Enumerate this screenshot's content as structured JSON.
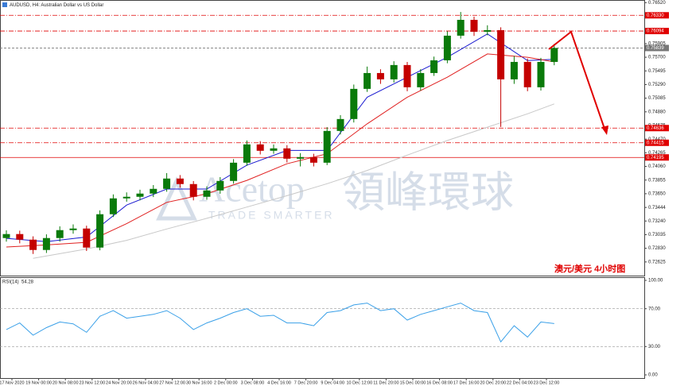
{
  "chart_data": [
    {
      "type": "candlestick",
      "title": "AUDUSD, H4: Australian Dollar vs US Dollar",
      "annotation": "澳元/美元   4小时图",
      "up_color": "#0a7a0a",
      "down_color": "#c40000",
      "categories": [
        "17 Nov 2020",
        null,
        "19 Nov 00:00",
        null,
        "20 Nov 08:00",
        null,
        "23 Nov 12:00",
        null,
        "24 Nov 20:00",
        null,
        "26 Nov 04:00",
        null,
        "27 Nov 12:00",
        null,
        "30 Nov 16:00",
        null,
        "2 Dec 00:00",
        null,
        "3 Dec 08:00",
        null,
        "4 Dec 16:00",
        null,
        "7 Dec 20:00",
        null,
        "9 Dec 04:00",
        null,
        "10 Dec 12:00",
        null,
        "11 Dec 20:00",
        null,
        "15 Dec 00:00",
        null,
        "16 Dec 08:00",
        null,
        "17 Dec 16:00",
        null,
        "20 Dec 20:00",
        null,
        "22 Dec 04:00",
        null,
        "23 Dec 12:00",
        null
      ],
      "candles": [
        [
          0.72984,
          0.731,
          0.7293,
          0.73044
        ],
        [
          0.73044,
          0.73095,
          0.72905,
          0.7296
        ],
        [
          0.7296,
          0.7301,
          0.72745,
          0.72805
        ],
        [
          0.72805,
          0.7304,
          0.7276,
          0.72984
        ],
        [
          0.72984,
          0.7316,
          0.7293,
          0.73103
        ],
        [
          0.73103,
          0.7319,
          0.7305,
          0.73127
        ],
        [
          0.73127,
          0.7317,
          0.7279,
          0.72841
        ],
        [
          0.72841,
          0.734,
          0.728,
          0.73342
        ],
        [
          0.73342,
          0.7364,
          0.733,
          0.7358
        ],
        [
          0.7358,
          0.7367,
          0.7353,
          0.73604
        ],
        [
          0.73604,
          0.7371,
          0.7355,
          0.73652
        ],
        [
          0.73652,
          0.7378,
          0.736,
          0.73723
        ],
        [
          0.73723,
          0.7396,
          0.7368,
          0.73878
        ],
        [
          0.73878,
          0.7393,
          0.7374,
          0.73795
        ],
        [
          0.73795,
          0.7384,
          0.7355,
          0.73604
        ],
        [
          0.73604,
          0.7376,
          0.7356,
          0.73699
        ],
        [
          0.73699,
          0.739,
          0.7365,
          0.73842
        ],
        [
          0.73842,
          0.7417,
          0.738,
          0.74116
        ],
        [
          0.74116,
          0.7445,
          0.7407,
          0.74391
        ],
        [
          0.74391,
          0.7444,
          0.7424,
          0.74295
        ],
        [
          0.74295,
          0.7439,
          0.7425,
          0.74331
        ],
        [
          0.74331,
          0.7438,
          0.7412,
          0.74176
        ],
        [
          0.74176,
          0.7426,
          0.7406,
          0.742
        ],
        [
          0.742,
          0.7425,
          0.7406,
          0.74116
        ],
        [
          0.74116,
          0.7465,
          0.7408,
          0.74593
        ],
        [
          0.74593,
          0.7483,
          0.7454,
          0.74772
        ],
        [
          0.74772,
          0.7529,
          0.7472,
          0.75225
        ],
        [
          0.75225,
          0.7556,
          0.7518,
          0.75463
        ],
        [
          0.75463,
          0.7552,
          0.753,
          0.75368
        ],
        [
          0.75368,
          0.7564,
          0.7532,
          0.75583
        ],
        [
          0.75583,
          0.7563,
          0.7519,
          0.75249
        ],
        [
          0.75249,
          0.7552,
          0.752,
          0.75463
        ],
        [
          0.75463,
          0.7571,
          0.7542,
          0.75654
        ],
        [
          0.75654,
          0.7609,
          0.7561,
          0.76024
        ],
        [
          0.76024,
          0.7638,
          0.7598,
          0.76262
        ],
        [
          0.76262,
          0.7631,
          0.7602,
          0.76083
        ],
        [
          0.76083,
          0.7618,
          0.7603,
          0.76107
        ],
        [
          0.76107,
          0.7615,
          0.74653,
          0.75368
        ],
        [
          0.75368,
          0.7572,
          0.753,
          0.7563
        ],
        [
          0.7563,
          0.7568,
          0.7519,
          0.75249
        ],
        [
          0.75249,
          0.7569,
          0.752,
          0.7563
        ],
        [
          0.7563,
          0.759,
          0.7558,
          0.75839
        ]
      ],
      "overlays": [
        {
          "color": "#1a1ad0",
          "x": [
            0,
            3,
            6,
            9,
            12,
            15,
            18,
            21,
            24,
            27,
            30,
            33,
            36,
            39,
            41
          ],
          "values": [
            0.7298,
            0.7293,
            0.73,
            0.7348,
            0.7372,
            0.7372,
            0.7408,
            0.743,
            0.743,
            0.751,
            0.754,
            0.757,
            0.7605,
            0.7565,
            0.7567
          ]
        },
        {
          "color": "#e02020",
          "x": [
            0,
            3,
            6,
            9,
            12,
            15,
            18,
            21,
            24,
            27,
            30,
            33,
            36,
            39,
            41
          ],
          "values": [
            0.7285,
            0.7288,
            0.7292,
            0.732,
            0.7352,
            0.7365,
            0.7385,
            0.741,
            0.7425,
            0.747,
            0.751,
            0.754,
            0.7575,
            0.757,
            0.7563
          ]
        },
        {
          "color": "#c8c8c8",
          "x": [
            2,
            6,
            9,
            12,
            15,
            18,
            21,
            24,
            27,
            30,
            33,
            36,
            39,
            41
          ],
          "values": [
            0.7268,
            0.7282,
            0.7295,
            0.7312,
            0.7328,
            0.7345,
            0.7362,
            0.738,
            0.74,
            0.7423,
            0.7445,
            0.7465,
            0.7485,
            0.75
          ]
        }
      ],
      "ylim": [
        0.7242,
        0.7656
      ],
      "yticks": [
        {
          "value": 0.7652,
          "label": "0.76520"
        },
        0.76315,
        {
          "value": 0.7611,
          "label": "0.76110"
        },
        0.75905,
        {
          "value": 0.757,
          "label": "0.75700"
        },
        0.75495,
        {
          "value": 0.7529,
          "label": "0.75290"
        },
        0.75085,
        {
          "value": 0.7488,
          "label": "0.74880"
        },
        0.74675,
        {
          "value": 0.7447,
          "label": "0.74470"
        },
        0.74265,
        {
          "value": 0.7406,
          "label": "0.74060"
        },
        0.73855,
        {
          "value": 0.7365,
          "label": "0.73650"
        },
        0.73444,
        {
          "value": 0.7324,
          "label": "0.73240"
        },
        0.73035,
        {
          "value": 0.7283,
          "label": "0.72830"
        },
        0.72625
      ],
      "levels": [
        {
          "value": 0.7633,
          "label": "0.76330",
          "color": "#e00000",
          "style": "dashdot"
        },
        {
          "value": 0.76094,
          "label": "0.76094",
          "color": "#e00000",
          "style": "dashdot"
        },
        {
          "value": 0.75839,
          "label": "0.75839",
          "color": "#777777",
          "style": "dash"
        },
        {
          "value": 0.74636,
          "label": "0.74636",
          "color": "#e00000",
          "style": "dashdot"
        },
        {
          "value": 0.74415,
          "label": "0.74415",
          "color": "#e00000",
          "style": "dashdot"
        },
        {
          "value": 0.74195,
          "label": "0.74195",
          "color": "#e00000",
          "style": "solid"
        }
      ]
    },
    {
      "type": "line",
      "title": "RSI(14)",
      "color": "#3aa0e8",
      "values": [
        48,
        55,
        42,
        50,
        56,
        54,
        45,
        62,
        68,
        60,
        62,
        64,
        68,
        60,
        48,
        55,
        60,
        66,
        70,
        62,
        63,
        55,
        55,
        52,
        66,
        68,
        74,
        76,
        68,
        70,
        58,
        64,
        68,
        72,
        76,
        68,
        66,
        35,
        52,
        40,
        56,
        54.28
      ],
      "ylim": [
        0,
        100
      ],
      "yticks": [
        {
          "value": 100,
          "label": "100.00"
        },
        {
          "value": 70,
          "label": "70.00"
        },
        {
          "value": 30,
          "label": "30.00"
        },
        {
          "value": 0,
          "label": "0.00"
        }
      ],
      "levels": [
        70,
        30
      ]
    }
  ],
  "watermark": {
    "brand": "Acetop",
    "chinese": "領峰環球",
    "tagline": "TRADE SMARTER"
  }
}
